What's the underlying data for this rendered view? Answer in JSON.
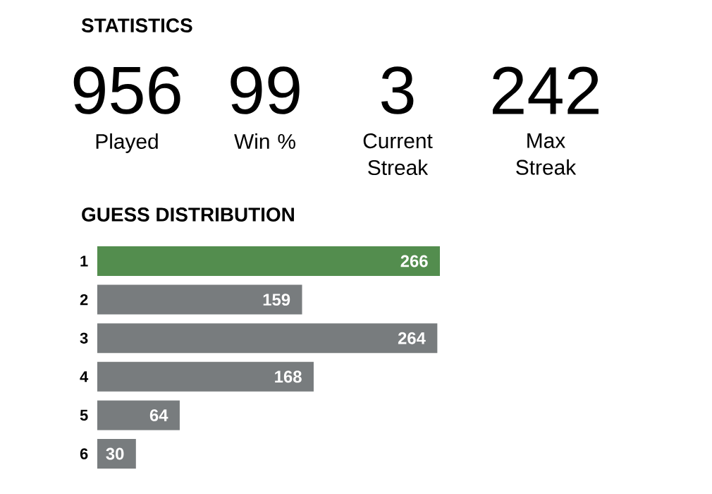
{
  "chart_data": [
    {
      "type": "other",
      "title": "STATISTICS",
      "annotations": [
        "956",
        "Played",
        "99",
        "Win %",
        "3",
        "Current Streak",
        "242",
        "Max Streak"
      ]
    },
    {
      "type": "bar",
      "title": "GUESS DISTRIBUTION",
      "orientation": "horizontal",
      "categories": [
        "1",
        "2",
        "3",
        "4",
        "5",
        "6"
      ],
      "values": [
        266,
        159,
        264,
        168,
        64,
        30
      ],
      "colors": [
        "#538d4e",
        "#787c7e",
        "#787c7e",
        "#787c7e",
        "#787c7e",
        "#787c7e"
      ],
      "data_labels": true
    }
  ]
}
